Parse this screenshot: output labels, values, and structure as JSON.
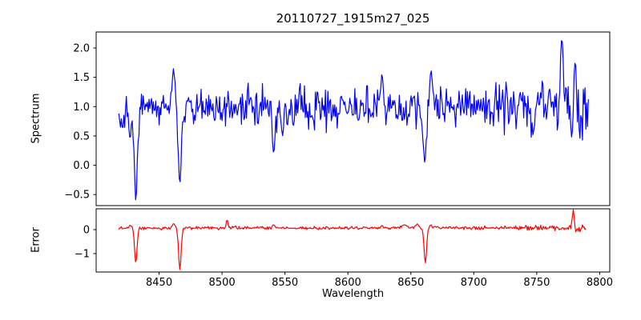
{
  "title": "20110727_1915m27_025",
  "xlabel": "Wavelength",
  "colors": {
    "spectrum_line": "#0000ff",
    "error_line": "#ff0000",
    "axis": "#000000",
    "background": "#ffffff"
  },
  "x_axis": {
    "lim": [
      8400,
      8808
    ],
    "ticks": [
      8450,
      8500,
      8550,
      8600,
      8650,
      8700,
      8750,
      8800
    ],
    "tick_labels": [
      "8450",
      "8500",
      "8550",
      "8600",
      "8650",
      "8700",
      "8750",
      "8800"
    ]
  },
  "chart_data": [
    {
      "name": "spectrum",
      "type": "line",
      "title": "20110727_1915m27_025",
      "ylabel": "Spectrum",
      "color": "#0000ff",
      "ylim": [
        -0.688,
        2.273
      ],
      "yticks": [
        {
          "value": 2.0,
          "label": "2.0"
        },
        {
          "value": 1.5,
          "label": "1.5"
        },
        {
          "value": 1.0,
          "label": "1.0"
        },
        {
          "value": 0.5,
          "label": "0.5"
        },
        {
          "value": 0.0,
          "label": "0.0"
        },
        {
          "value": -0.5,
          "label": "−0.5"
        }
      ],
      "x_range": [
        8418,
        8791
      ],
      "n_points": 560,
      "baseline": 0.97,
      "noise_amp": 0.165,
      "noise_growth": {
        "from": 8690,
        "factor": 1.9
      },
      "seed": 1234567,
      "features": [
        {
          "x": 8421.0,
          "value": 0.62,
          "width": 0.8
        },
        {
          "x": 8427.0,
          "value": 0.45,
          "width": 1.0
        },
        {
          "x": 8431.5,
          "value": -0.6,
          "width": 1.2
        },
        {
          "x": 8461.5,
          "value": 1.65,
          "width": 1.1
        },
        {
          "x": 8466.5,
          "value": -0.3,
          "width": 1.2
        },
        {
          "x": 8541.0,
          "value": 0.22,
          "width": 1.3
        },
        {
          "x": 8548.0,
          "value": 0.5,
          "width": 0.8
        },
        {
          "x": 8627.0,
          "value": 1.55,
          "width": 1.0
        },
        {
          "x": 8661.0,
          "value": 0.05,
          "width": 1.3
        },
        {
          "x": 8666.0,
          "value": 1.62,
          "width": 1.0
        },
        {
          "x": 8747.0,
          "value": 0.52,
          "width": 1.0
        },
        {
          "x": 8770.0,
          "value": 2.15,
          "width": 1.2
        },
        {
          "x": 8778.0,
          "value": 0.47,
          "width": 0.9
        },
        {
          "x": 8780.5,
          "value": 1.75,
          "width": 0.9
        }
      ]
    },
    {
      "name": "error",
      "type": "line",
      "ylabel": "Error",
      "color": "#ff0000",
      "ylim": [
        -1.77,
        0.87
      ],
      "yticks": [
        {
          "value": 0,
          "label": "0"
        },
        {
          "value": -1,
          "label": "−1"
        }
      ],
      "x_range": [
        8418,
        8789
      ],
      "n_points": 560,
      "baseline": 0.07,
      "noise_amp": 0.033,
      "noise_growth": {
        "from": 8720,
        "factor": 2.5
      },
      "seed": 424242,
      "features": [
        {
          "x": 8427.0,
          "value": 0.18,
          "width": 1.0
        },
        {
          "x": 8431.5,
          "value": -1.38,
          "width": 1.0
        },
        {
          "x": 8461.5,
          "value": 0.25,
          "width": 1.0
        },
        {
          "x": 8466.5,
          "value": -1.67,
          "width": 1.0
        },
        {
          "x": 8504.0,
          "value": 0.42,
          "width": 0.7
        },
        {
          "x": 8541.0,
          "value": 0.2,
          "width": 0.9
        },
        {
          "x": 8627.0,
          "value": 0.17,
          "width": 0.8
        },
        {
          "x": 8645.0,
          "value": 0.2,
          "width": 2.0
        },
        {
          "x": 8655.0,
          "value": 0.24,
          "width": 1.0
        },
        {
          "x": 8661.5,
          "value": -1.39,
          "width": 1.0
        },
        {
          "x": 8666.0,
          "value": 0.2,
          "width": 0.8
        },
        {
          "x": 8779.0,
          "value": 0.83,
          "width": 0.7
        }
      ]
    }
  ]
}
